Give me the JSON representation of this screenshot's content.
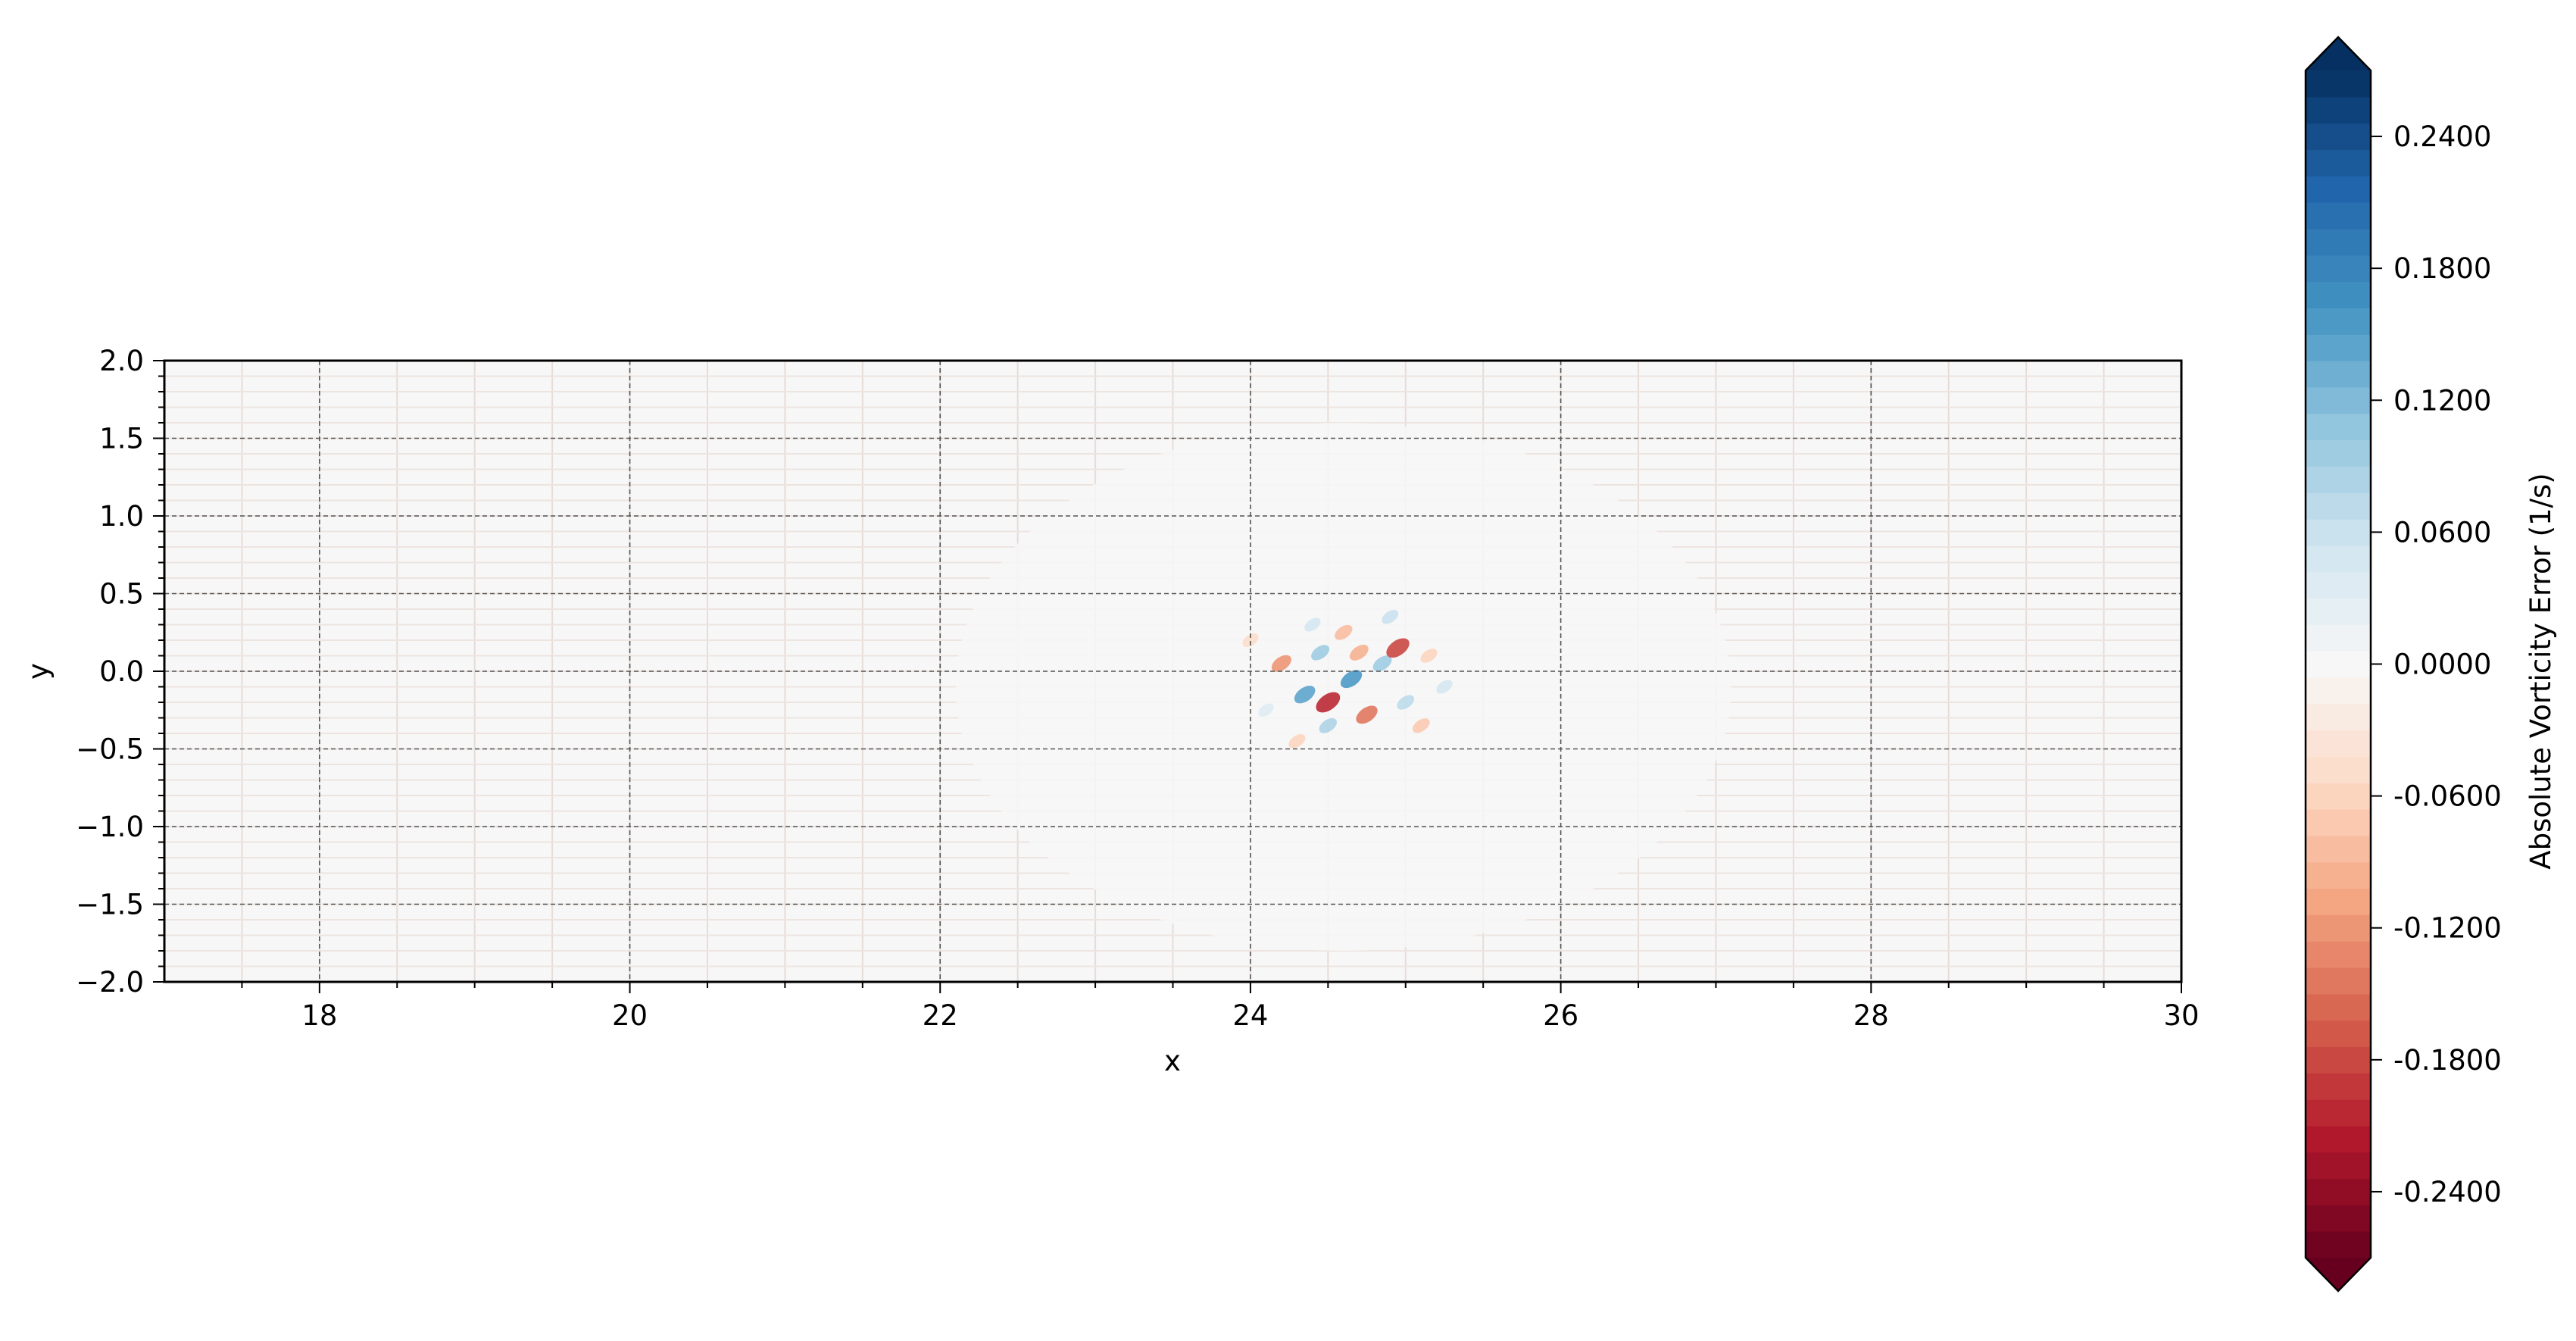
{
  "chart_data": {
    "type": "heatmap",
    "xlabel": "x",
    "ylabel": "y",
    "xlim": [
      17,
      30
    ],
    "ylim": [
      -2.0,
      2.0
    ],
    "x_ticks": [
      "18",
      "20",
      "22",
      "24",
      "26",
      "28",
      "30"
    ],
    "y_ticks": [
      "2.0",
      "1.5",
      "1.0",
      "0.5",
      "0.0",
      "−0.5",
      "−1.0",
      "−1.5",
      "−2.0"
    ],
    "x_tick_values": [
      18,
      20,
      22,
      24,
      26,
      28,
      30
    ],
    "y_tick_values": [
      2.0,
      1.5,
      1.0,
      0.5,
      0.0,
      -0.5,
      -1.0,
      -1.5,
      -2.0
    ],
    "grid": true,
    "colormap": "RdBu",
    "colorbar": {
      "label": "Absolute Vorticity Error (1/s)",
      "range": [
        -0.27,
        0.27
      ],
      "extend": "both",
      "levels": 45,
      "tick_values": [
        0.24,
        0.18,
        0.12,
        0.06,
        0.0,
        -0.06,
        -0.12,
        -0.18,
        -0.24
      ],
      "tick_labels": [
        "0.2400",
        "0.1800",
        "0.1200",
        "0.0600",
        "0.0000",
        "-0.0600",
        "-0.1200",
        "-0.1800",
        "-0.2400"
      ]
    },
    "field_summary": {
      "background_value": -0.005,
      "halo": {
        "center": [
          24.6,
          -0.1
        ],
        "radius_x": 2.5,
        "radius_y": 1.7,
        "value": 0.005
      },
      "error_cluster": {
        "center": [
          24.6,
          -0.1
        ],
        "spots": [
          {
            "x": 24.35,
            "y": -0.15,
            "value": 0.14
          },
          {
            "x": 24.65,
            "y": -0.05,
            "value": 0.15
          },
          {
            "x": 24.85,
            "y": 0.05,
            "value": 0.1
          },
          {
            "x": 24.5,
            "y": -0.35,
            "value": 0.08
          },
          {
            "x": 25.0,
            "y": -0.2,
            "value": 0.07
          },
          {
            "x": 24.5,
            "y": -0.2,
            "value": -0.2
          },
          {
            "x": 24.95,
            "y": 0.15,
            "value": -0.18
          },
          {
            "x": 24.75,
            "y": -0.28,
            "value": -0.15
          },
          {
            "x": 24.2,
            "y": 0.05,
            "value": -0.12
          },
          {
            "x": 24.6,
            "y": 0.25,
            "value": -0.08
          },
          {
            "x": 25.1,
            "y": -0.35,
            "value": -0.07
          },
          {
            "x": 24.3,
            "y": -0.45,
            "value": -0.06
          },
          {
            "x": 24.0,
            "y": 0.2,
            "value": -0.05
          },
          {
            "x": 24.4,
            "y": 0.3,
            "value": 0.05
          },
          {
            "x": 24.9,
            "y": 0.35,
            "value": 0.06
          },
          {
            "x": 25.15,
            "y": 0.1,
            "value": -0.06
          },
          {
            "x": 24.1,
            "y": -0.25,
            "value": 0.04
          },
          {
            "x": 24.7,
            "y": 0.12,
            "value": -0.1
          },
          {
            "x": 24.45,
            "y": 0.12,
            "value": 0.09
          },
          {
            "x": 25.25,
            "y": -0.1,
            "value": 0.05
          }
        ]
      }
    }
  }
}
